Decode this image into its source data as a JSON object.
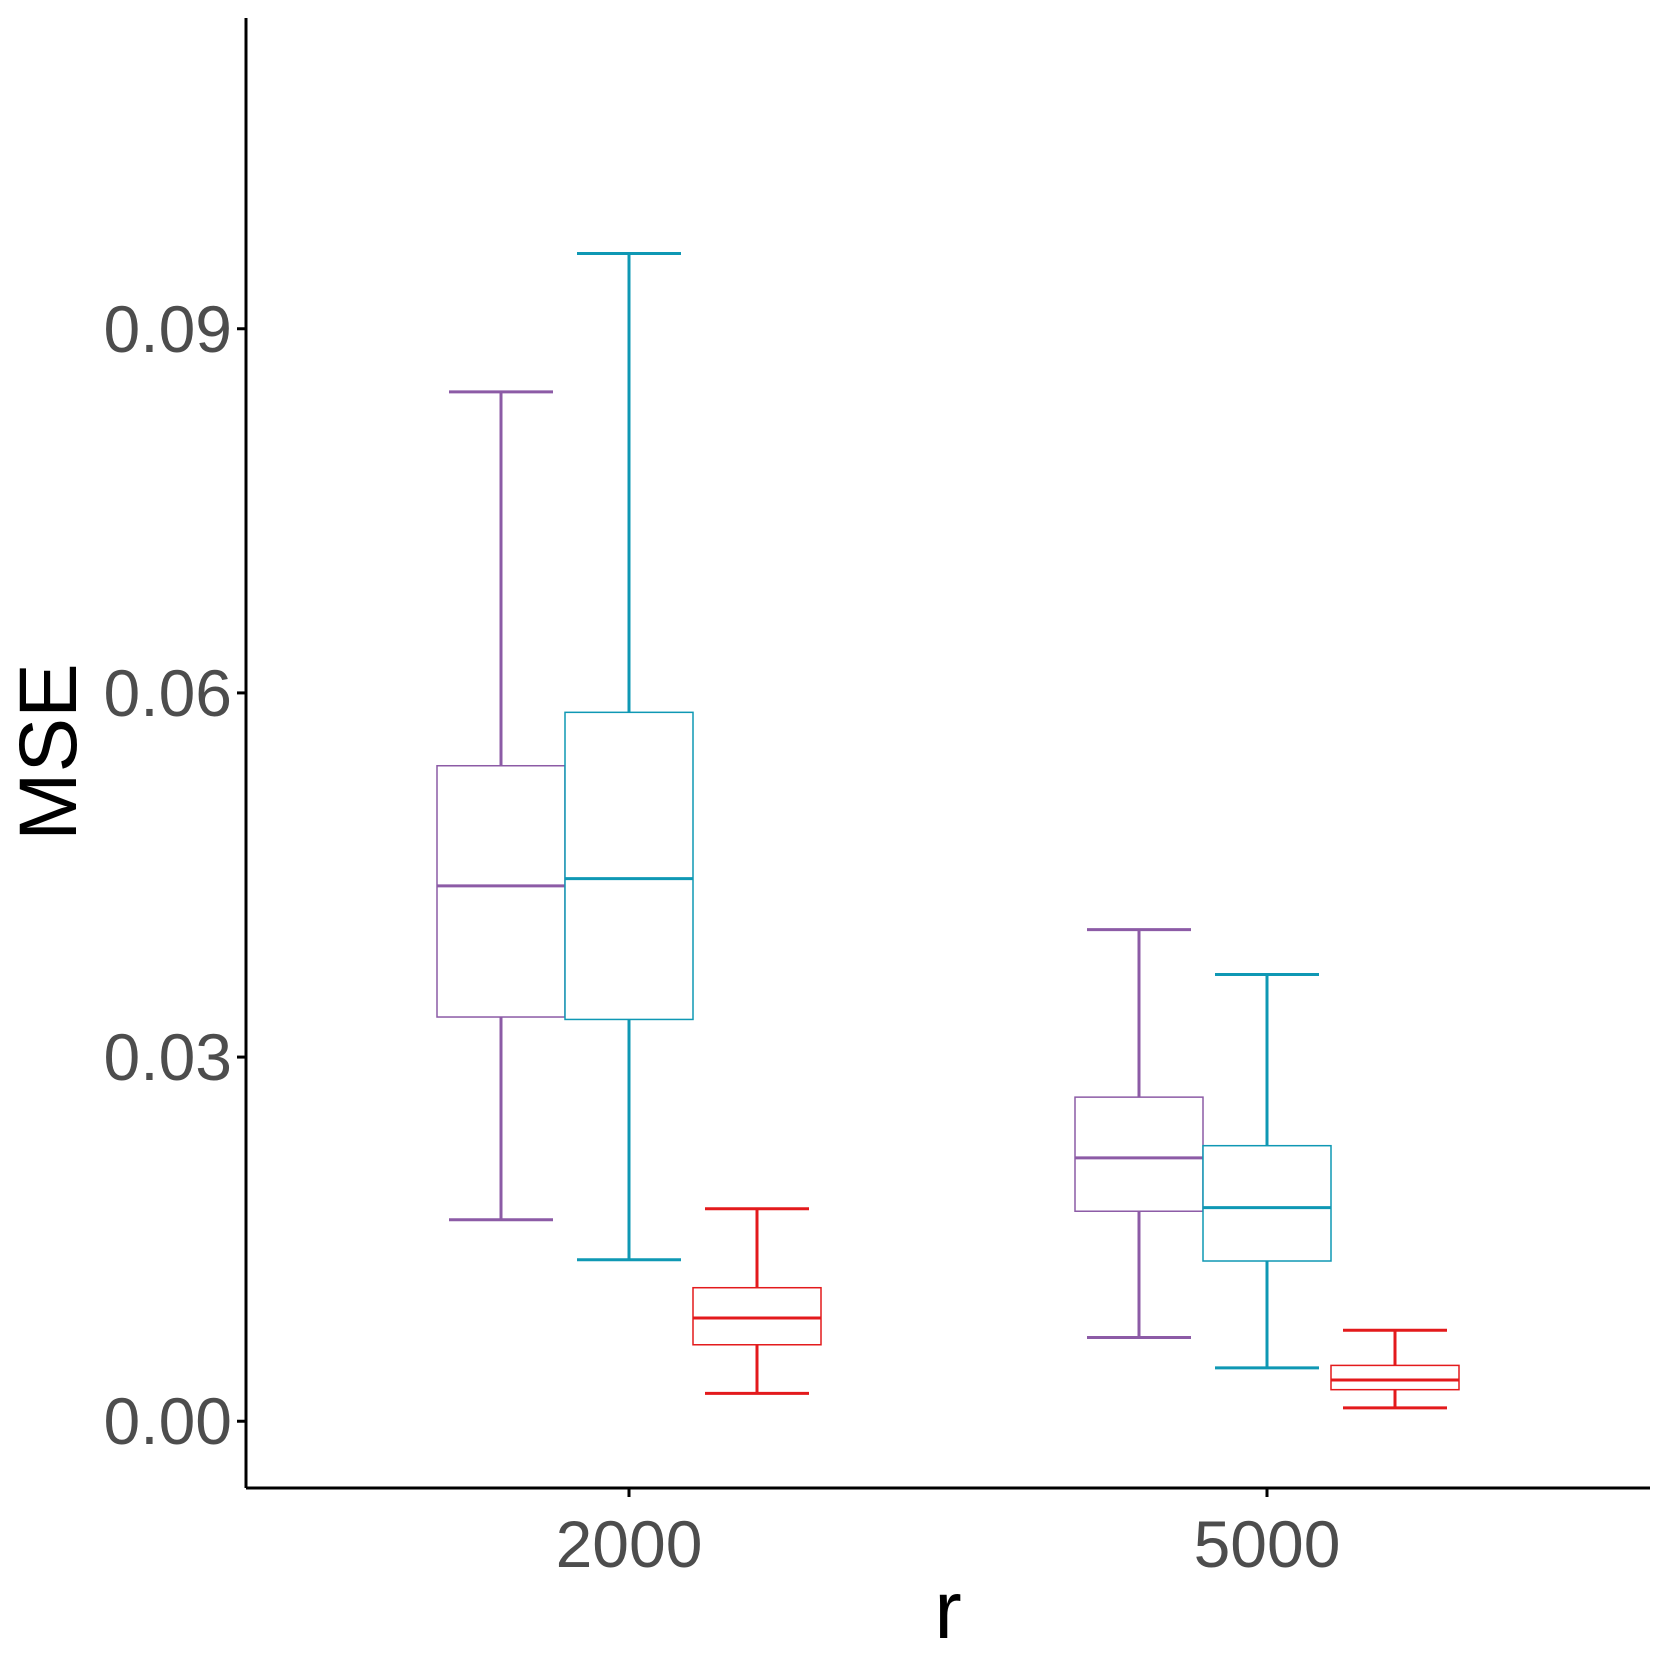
{
  "chart_data": {
    "type": "box",
    "xlabel": "r",
    "ylabel": "MSE",
    "categories": [
      "2000",
      "5000"
    ],
    "ylim": [
      -0.0055,
      0.1156
    ],
    "yticks": [
      0.0,
      0.03,
      0.06,
      0.09
    ],
    "ytick_labels": [
      "0.00",
      "0.03",
      "0.06",
      "0.09"
    ],
    "grid": false,
    "legend": "none",
    "series": [
      {
        "color": "#8c5ba6",
        "boxes": [
          {
            "whisker_low": 0.0166,
            "q1": 0.0333,
            "median": 0.0441,
            "q3": 0.054,
            "whisker_high": 0.0848
          },
          {
            "whisker_low": 0.0069,
            "q1": 0.0173,
            "median": 0.0217,
            "q3": 0.0267,
            "whisker_high": 0.0405
          }
        ]
      },
      {
        "color": "#0f98b4",
        "boxes": [
          {
            "whisker_low": 0.0133,
            "q1": 0.0331,
            "median": 0.0447,
            "q3": 0.0584,
            "whisker_high": 0.0962
          },
          {
            "whisker_low": 0.0044,
            "q1": 0.0132,
            "median": 0.0176,
            "q3": 0.0227,
            "whisker_high": 0.0368
          }
        ]
      },
      {
        "color": "#e31a1c",
        "boxes": [
          {
            "whisker_low": 0.0023,
            "q1": 0.0063,
            "median": 0.0085,
            "q3": 0.011,
            "whisker_high": 0.0175
          },
          {
            "whisker_low": 0.0011,
            "q1": 0.0026,
            "median": 0.0034,
            "q3": 0.0046,
            "whisker_high": 0.0075
          }
        ]
      }
    ]
  }
}
